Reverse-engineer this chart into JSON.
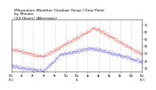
{
  "title": "Milwaukee Weather Outdoor Temp / Dew Point\nby Minute\n(24 Hours) (Alternate)",
  "title_fontsize": 3.2,
  "background_color": "#ffffff",
  "plot_bg_color": "#ffffff",
  "grid_color": "#aaaaaa",
  "ylim": [
    38,
    74
  ],
  "xlim": [
    0,
    1440
  ],
  "xtick_positions": [
    0,
    120,
    240,
    360,
    480,
    600,
    720,
    840,
    960,
    1080,
    1200,
    1320,
    1440
  ],
  "xtick_labels": [
    "12a\nM 2",
    "2a",
    "4a",
    "6a",
    "8a",
    "10a",
    "12p\nN",
    "2p",
    "4p",
    "6p",
    "8p",
    "10p",
    "12a\nM 3"
  ],
  "temp_color": "#cc0000",
  "dew_color": "#0000cc",
  "ytick_vals": [
    71,
    66,
    61,
    56,
    51,
    46,
    41
  ]
}
